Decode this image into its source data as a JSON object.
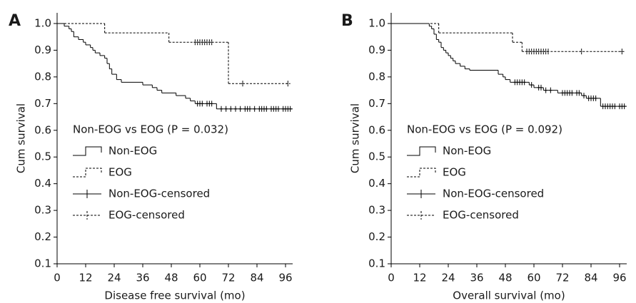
{
  "chart_data": [
    {
      "type": "step",
      "panel": "A",
      "xlabel": "Disease free survival (mo)",
      "ylabel": "Cum survival",
      "legend_title": "Non-EOG vs EOG (P = 0.032)",
      "legend": "lower-left",
      "xlim": [
        0,
        99
      ],
      "ylim": [
        0.1,
        1.04
      ],
      "xticks": [
        0,
        12,
        24,
        36,
        48,
        60,
        72,
        84,
        96
      ],
      "yticks": [
        0.1,
        0.2,
        0.3,
        0.4,
        0.5,
        0.6,
        0.7,
        0.8,
        0.9,
        {
          "value": 1,
          "label": "1.0"
        }
      ],
      "series": [
        {
          "name": "Non-EOG",
          "kind": "step",
          "dash": false,
          "color": "#000000",
          "x": [
            0,
            3,
            5,
            6,
            7,
            9,
            11,
            12,
            14,
            15,
            16,
            18,
            20,
            21,
            22,
            23,
            25,
            27,
            36,
            40,
            42,
            44,
            50,
            54,
            56,
            58,
            67,
            99
          ],
          "values": [
            1,
            0.99,
            0.98,
            0.97,
            0.95,
            0.94,
            0.93,
            0.92,
            0.91,
            0.9,
            0.89,
            0.88,
            0.87,
            0.85,
            0.83,
            0.81,
            0.79,
            0.78,
            0.77,
            0.76,
            0.75,
            0.74,
            0.73,
            0.72,
            0.71,
            0.7,
            0.68,
            0.68
          ]
        },
        {
          "name": "EOG",
          "kind": "step",
          "dash": true,
          "color": "#000000",
          "x": [
            0,
            20,
            47,
            72,
            98
          ],
          "values": [
            1,
            0.965,
            0.93,
            0.775,
            0.775
          ]
        },
        {
          "name": "Non-EOG-censored",
          "kind": "censored",
          "dash": false,
          "color": "#000000",
          "x": [
            59,
            60,
            61,
            63,
            64,
            65,
            69,
            71,
            73,
            75,
            77,
            79,
            80,
            81,
            83,
            85,
            86,
            87,
            88,
            90,
            91,
            92,
            93,
            95,
            96,
            97,
            98
          ],
          "values": [
            0.7,
            0.7,
            0.7,
            0.7,
            0.7,
            0.7,
            0.68,
            0.68,
            0.68,
            0.68,
            0.68,
            0.68,
            0.68,
            0.68,
            0.68,
            0.68,
            0.68,
            0.68,
            0.68,
            0.68,
            0.68,
            0.68,
            0.68,
            0.68,
            0.68,
            0.68,
            0.68
          ]
        },
        {
          "name": "EOG-censored",
          "kind": "censored",
          "dash": true,
          "color": "#000000",
          "x": [
            58,
            59,
            60,
            61,
            62,
            63,
            64,
            65,
            78,
            97
          ],
          "values": [
            0.93,
            0.93,
            0.93,
            0.93,
            0.93,
            0.93,
            0.93,
            0.93,
            0.775,
            0.775
          ]
        }
      ]
    },
    {
      "type": "step",
      "panel": "B",
      "xlabel": "Overall survival (mo)",
      "ylabel": "Cum survival",
      "legend_title": "Non-EOG vs EOG (P = 0.092)",
      "legend": "lower-left",
      "xlim": [
        0,
        99
      ],
      "ylim": [
        0.1,
        1.04
      ],
      "xticks": [
        0,
        12,
        24,
        36,
        48,
        60,
        72,
        84,
        96
      ],
      "yticks": [
        0.1,
        0.2,
        0.3,
        0.4,
        0.5,
        0.6,
        0.7,
        0.8,
        0.9,
        {
          "value": 1,
          "label": "1.0"
        }
      ],
      "series": [
        {
          "name": "Non-EOG",
          "kind": "step",
          "dash": false,
          "color": "#000000",
          "x": [
            0,
            16,
            17,
            18,
            19,
            20,
            21,
            22,
            23,
            24,
            25,
            26,
            27,
            29,
            31,
            33,
            45,
            47,
            48,
            50,
            58,
            60,
            64,
            70,
            80,
            82,
            88,
            99
          ],
          "values": [
            1,
            0.99,
            0.98,
            0.96,
            0.94,
            0.93,
            0.91,
            0.9,
            0.89,
            0.88,
            0.87,
            0.86,
            0.85,
            0.84,
            0.83,
            0.825,
            0.81,
            0.8,
            0.79,
            0.78,
            0.77,
            0.76,
            0.75,
            0.74,
            0.73,
            0.72,
            0.69,
            0.69
          ]
        },
        {
          "name": "EOG",
          "kind": "step",
          "dash": true,
          "color": "#000000",
          "x": [
            0,
            20,
            51,
            55,
            98
          ],
          "values": [
            1,
            0.965,
            0.93,
            0.895,
            0.895
          ]
        },
        {
          "name": "Non-EOG-censored",
          "kind": "censored",
          "dash": false,
          "color": "#000000",
          "x": [
            52,
            53,
            54,
            55,
            56,
            59,
            62,
            63,
            65,
            67,
            72,
            73,
            74,
            75,
            76,
            78,
            79,
            81,
            83,
            84,
            85,
            86,
            89,
            90,
            91,
            92,
            93,
            94,
            96,
            97,
            98
          ],
          "values": [
            0.78,
            0.78,
            0.78,
            0.78,
            0.78,
            0.77,
            0.76,
            0.76,
            0.75,
            0.75,
            0.74,
            0.74,
            0.74,
            0.74,
            0.74,
            0.74,
            0.74,
            0.73,
            0.72,
            0.72,
            0.72,
            0.72,
            0.69,
            0.69,
            0.69,
            0.69,
            0.69,
            0.69,
            0.69,
            0.69,
            0.69
          ]
        },
        {
          "name": "EOG-censored",
          "kind": "censored",
          "dash": true,
          "color": "#000000",
          "x": [
            57,
            58,
            59,
            60,
            61,
            62,
            63,
            64,
            65,
            66,
            80,
            97
          ],
          "values": [
            0.895,
            0.895,
            0.895,
            0.895,
            0.895,
            0.895,
            0.895,
            0.895,
            0.895,
            0.895,
            0.895,
            0.895
          ]
        }
      ]
    }
  ]
}
